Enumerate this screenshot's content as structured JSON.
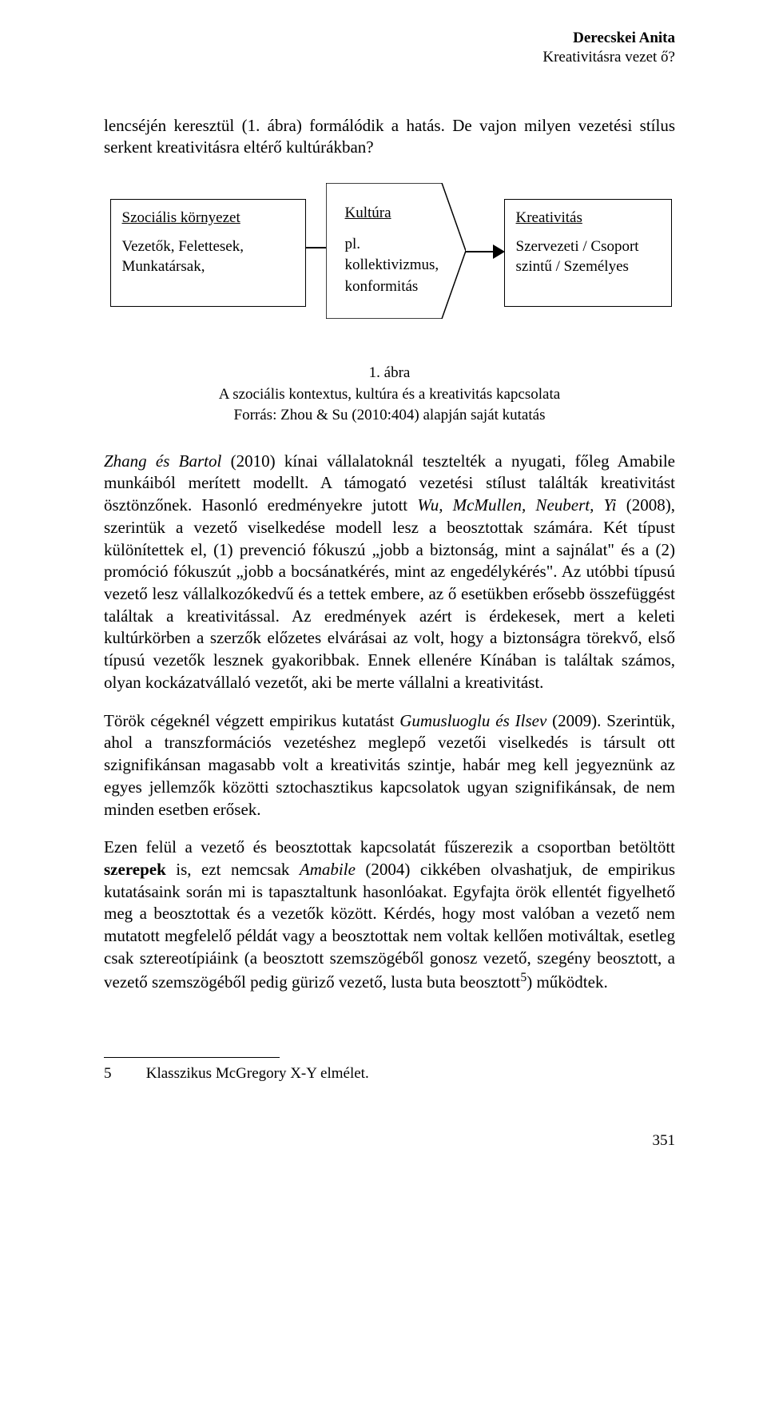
{
  "running_head": {
    "author": "Derecskei Anita",
    "title": "Kreativitásra vezet ő?"
  },
  "intro_paragraph": "lencséjén keresztül (1. ábra) formálódik a hatás. De vajon milyen vezetési stílus serkent kreativitásra eltérő kultúrákban?",
  "diagram": {
    "left": {
      "title": "Szociális környezet",
      "line1": "Vezetők, Felettesek,",
      "line2": "Munkatársak,"
    },
    "middle": {
      "title": "Kultúra",
      "line1": "pl.",
      "line2": "kollektivizmus,",
      "line3": "konformitás"
    },
    "right": {
      "title": "Kreativitás",
      "line1": "Szervezeti / Csoport",
      "line2": "szintű / Személyes"
    }
  },
  "figure_caption": {
    "num": "1. ábra",
    "line1": "A szociális kontextus, kultúra és a kreativitás kapcsolata",
    "line2": "Forrás: Zhou & Su (2010:404) alapján saját kutatás"
  },
  "para1": "<i>Zhang és Bartol</i> (2010) kínai vállalatoknál tesztelték a nyugati, főleg Amabile munkáiból merített modellt. A támogató vezetési stílust találták kreativitást ösztönzőnek. Hasonló eredményekre jutott <i>Wu, McMullen, Neubert, Yi</i> (2008), szerintük a vezető viselkedése modell lesz a beosztottak számára. Két típust különítettek el, (1) prevenció fókuszú „jobb a biztonság, mint a sajnálat\" és a (2) promóció fókuszút „jobb a bocsánatkérés, mint az engedélykérés\". Az utóbbi típusú vezető lesz vállalkozókedvű és a tettek embere, az ő esetükben erősebb összefüggést találtak a kreativitással. Az eredmények azért is érdekesek, mert a keleti kultúrkörben a szerzők előzetes elvárásai az volt, hogy a biztonságra törekvő, első típusú vezetők lesznek gyakoribbak. Ennek ellenére Kínában is találtak számos, olyan kockázatvállaló vezetőt, aki be merte vállalni a kreativitást.",
  "para2": "Török cégeknél végzett empirikus kutatást <i>Gumusluoglu és Ilsev</i> (2009). Szerintük, ahol a transzformációs vezetéshez meglepő vezetői viselkedés is társult ott szignifikánsan magasabb volt a kreativitás szintje, habár meg kell jegyeznünk az egyes jellemzők közötti sztochasztikus kapcsolatok ugyan szignifikánsak, de nem minden esetben erősek.",
  "para3": "Ezen felül a vezető és beosztottak kapcsolatát fűszerezik a csoportban betöltött <b>szerepek</b> is, ezt nemcsak <i>Amabile</i> (2004) cikkében olvashatjuk, de empirikus kutatásaink során mi is tapasztaltunk hasonlóakat. Egyfajta örök ellentét figyelhető meg a beosztottak és a vezetők között. Kérdés, hogy most valóban a vezető nem mutatott megfelelő példát vagy a beosztottak nem voltak kellően motiváltak, esetleg csak sztereotípiáink (a beosztott szemszögéből gonosz vezető, szegény beosztott, a vezető szemszögéből pedig güriző vezető, lusta buta beosztott<sup>5</sup>) működtek.",
  "footnote": {
    "num": "5",
    "text": "Klasszikus McGregory X-Y elmélet."
  },
  "page_number": "351"
}
